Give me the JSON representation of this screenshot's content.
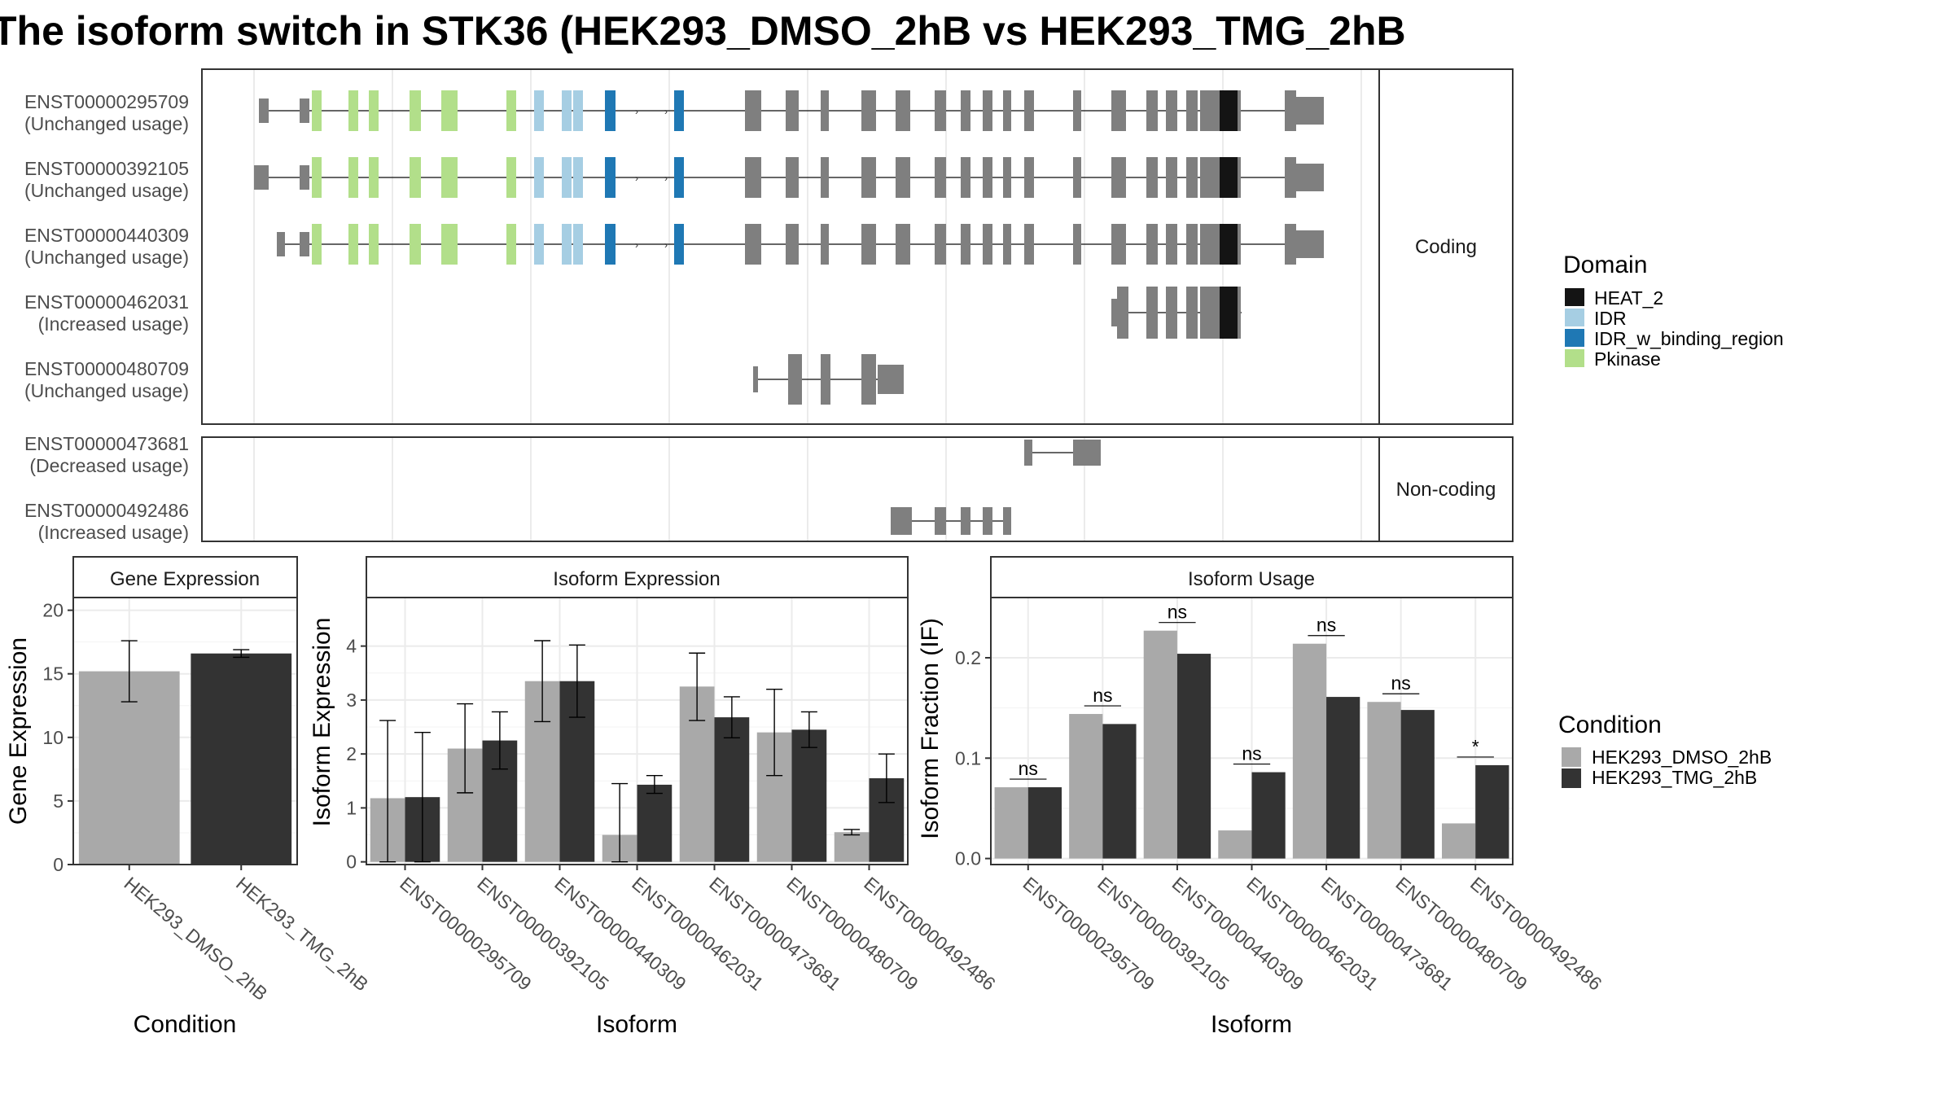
{
  "title": "The isoform switch in STK36 (HEK293_DMSO_2hB vs HEK293_TMG_2hB",
  "colors": {
    "HEAT_2": "#141414",
    "IDR": "#a6cee3",
    "IDR_w_binding_region": "#1f78b4",
    "Pkinase": "#b2df8a",
    "exon": "#7f7f7f",
    "dmso": "#a9a9a9",
    "tmg": "#333333",
    "panel_border": "#333333",
    "grid": "#ebebeb",
    "strip": "#ffffff"
  },
  "legend_domain": {
    "title": "Domain",
    "items": [
      {
        "label": "HEAT_2",
        "color": "#141414"
      },
      {
        "label": "IDR",
        "color": "#a6cee3"
      },
      {
        "label": "IDR_w_binding_region",
        "color": "#1f78b4"
      },
      {
        "label": "Pkinase",
        "color": "#b2df8a"
      }
    ]
  },
  "legend_condition": {
    "title": "Condition",
    "items": [
      {
        "label": "HEK293_DMSO_2hB",
        "color": "#a9a9a9"
      },
      {
        "label": "HEK293_TMG_2hB",
        "color": "#333333"
      }
    ]
  },
  "structure": {
    "coding_label": "Coding",
    "noncoding_label": "Non-coding",
    "coding": [
      {
        "id": "ENST00000295709",
        "usage": "(Unchanged usage)"
      },
      {
        "id": "ENST00000392105",
        "usage": "(Unchanged usage)"
      },
      {
        "id": "ENST00000440309",
        "usage": "(Unchanged usage)"
      },
      {
        "id": "ENST00000462031",
        "usage": "(Increased usage)"
      },
      {
        "id": "ENST00000480709",
        "usage": "(Unchanged usage)"
      }
    ],
    "noncoding": [
      {
        "id": "ENST00000473681",
        "usage": "(Decreased usage)"
      },
      {
        "id": "ENST00000492486",
        "usage": "(Increased usage)"
      }
    ]
  },
  "chart_data": [
    {
      "type": "bar",
      "panel": "Gene Expression",
      "xlabel": "Condition",
      "ylabel": "Gene Expression",
      "ylim": [
        0,
        21
      ],
      "yticks": [
        0,
        5,
        10,
        15,
        20
      ],
      "categories": [
        "HEK293_DMSO_2hB",
        "HEK293_TMG_2hB"
      ],
      "series": [
        {
          "name": "HEK293_DMSO_2hB",
          "values": [
            15.2,
            null
          ],
          "err_low": [
            12.8,
            null
          ],
          "err_high": [
            17.6,
            null
          ]
        },
        {
          "name": "HEK293_TMG_2hB",
          "values": [
            null,
            16.6
          ],
          "err_low": [
            null,
            16.3
          ],
          "err_high": [
            null,
            16.9
          ]
        }
      ]
    },
    {
      "type": "bar",
      "panel": "Isoform Expression",
      "xlabel": "Isoform",
      "ylabel": "Isoform Expression",
      "ylim": [
        -0.05,
        4.9
      ],
      "yticks": [
        0,
        1,
        2,
        3,
        4
      ],
      "categories": [
        "ENST00000295709",
        "ENST00000392105",
        "ENST00000440309",
        "ENST00000462031",
        "ENST00000473681",
        "ENST00000480709",
        "ENST00000492486"
      ],
      "series": [
        {
          "name": "HEK293_DMSO_2hB",
          "values": [
            1.18,
            2.1,
            3.35,
            0.5,
            3.25,
            2.4,
            0.55
          ],
          "err_low": [
            0.0,
            1.28,
            2.6,
            0.0,
            2.62,
            1.6,
            0.5
          ],
          "err_high": [
            2.62,
            2.93,
            4.1,
            1.45,
            3.87,
            3.2,
            0.6
          ]
        },
        {
          "name": "HEK293_TMG_2hB",
          "values": [
            1.2,
            2.25,
            3.35,
            1.43,
            2.68,
            2.45,
            1.55
          ],
          "err_low": [
            0.0,
            1.72,
            2.68,
            1.27,
            2.3,
            2.12,
            1.1
          ],
          "err_high": [
            2.4,
            2.78,
            4.02,
            1.6,
            3.06,
            2.78,
            2.0
          ]
        }
      ]
    },
    {
      "type": "bar",
      "panel": "Isoform Usage",
      "xlabel": "Isoform",
      "ylabel": "Isoform Fraction (IF)",
      "ylim": [
        -0.006,
        0.26
      ],
      "yticks": [
        0.0,
        0.1,
        0.2
      ],
      "ytick_labels": [
        "0.0",
        "0.1",
        "0.2"
      ],
      "categories": [
        "ENST00000295709",
        "ENST00000392105",
        "ENST00000440309",
        "ENST00000462031",
        "ENST00000473681",
        "ENST00000480709",
        "ENST00000492486"
      ],
      "series": [
        {
          "name": "HEK293_DMSO_2hB",
          "values": [
            0.071,
            0.144,
            0.227,
            0.028,
            0.214,
            0.156,
            0.035
          ]
        },
        {
          "name": "HEK293_TMG_2hB",
          "values": [
            0.071,
            0.134,
            0.204,
            0.086,
            0.161,
            0.148,
            0.093
          ]
        }
      ],
      "significance": [
        "ns",
        "ns",
        "ns",
        "ns",
        "ns",
        "ns",
        "*"
      ]
    }
  ]
}
